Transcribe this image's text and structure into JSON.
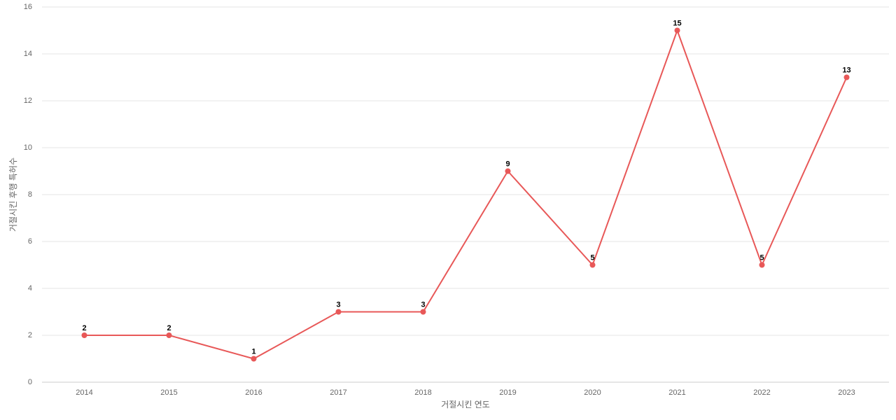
{
  "chart_data": {
    "type": "line",
    "x_label": "거절시킨 연도",
    "y_label": "거절시킨 후행 특허수",
    "categories": [
      "2014",
      "2015",
      "2016",
      "2017",
      "2018",
      "2019",
      "2020",
      "2021",
      "2022",
      "2023"
    ],
    "values": [
      2,
      2,
      1,
      3,
      3,
      9,
      5,
      15,
      5,
      13
    ],
    "color": "#e85858",
    "ylim": [
      0,
      16
    ],
    "yticks": [
      0,
      2,
      4,
      6,
      8,
      10,
      12,
      14,
      16
    ],
    "grid": true
  }
}
